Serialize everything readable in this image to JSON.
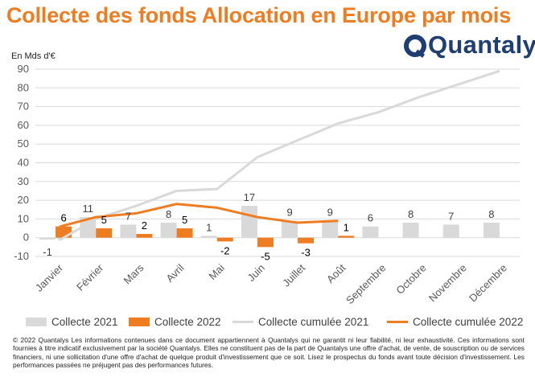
{
  "title": "Collecte des fonds Allocation en Europe par mois",
  "brand": {
    "name": "Quantalys",
    "logo_initial": "Q"
  },
  "colors": {
    "title": "#ee7d22",
    "brand": "#1f3f73",
    "bar2021": "#d9d9d9",
    "bar2022": "#ee7d22",
    "line2021": "#d9d9d9",
    "line2022": "#ee7d22",
    "grid": "#d9d9d9",
    "axis_text": "#595959"
  },
  "unit_label": "En Mds d'€",
  "chart_data": {
    "type": "bar",
    "categories": [
      "Janvier",
      "Février",
      "Mars",
      "Avril",
      "Mai",
      "Juin",
      "Juillet",
      "Août",
      "Septembre",
      "Octobre",
      "Novembre",
      "Décembre"
    ],
    "ylim": [
      -10,
      90
    ],
    "yticks": [
      -10,
      0,
      10,
      20,
      30,
      40,
      50,
      60,
      70,
      80,
      90
    ],
    "grid": true,
    "legend_position": "bottom",
    "series": [
      {
        "name": "Collecte 2021",
        "kind": "bar",
        "color": "#d9d9d9",
        "values": [
          -1,
          11,
          7,
          8,
          1,
          17,
          9,
          9,
          6,
          8,
          7,
          8
        ],
        "labels": [
          "-1",
          "11",
          "7",
          "8",
          "1",
          "17",
          "9",
          "9",
          "6",
          "8",
          "7",
          "8"
        ]
      },
      {
        "name": "Collecte 2022",
        "kind": "bar",
        "color": "#ee7d22",
        "values": [
          6,
          5,
          2,
          5,
          -2,
          -5,
          -3,
          1,
          null,
          null,
          null,
          null
        ],
        "labels": [
          "6",
          "5",
          "2",
          "5",
          "-2",
          "-5",
          "-3",
          "1",
          "",
          "",
          "",
          ""
        ]
      },
      {
        "name": "Collecte cumulée 2021",
        "kind": "line",
        "color": "#d9d9d9",
        "start": 0,
        "values": [
          -1,
          10,
          17,
          25,
          26,
          43,
          52,
          61,
          67,
          75,
          82,
          89
        ]
      },
      {
        "name": "Collecte cumulée 2022",
        "kind": "line",
        "color": "#ee7d22",
        "start": 0,
        "values": [
          6,
          11,
          13,
          18,
          16,
          11,
          8,
          9,
          null,
          null,
          null,
          null
        ]
      }
    ]
  },
  "footer": "© 2022 Quantalys Les informations contenues dans ce document appartiennent à Quantalys qui ne garantit ni leur fiabilité, ni leur exhaustivité. Ces informations sont fournies à titre indicatif exclusivement par la société Quantalys. Elles ne constituent pas de la part de Quantalys une offre d'achat, de vente, de souscription ou de services financiers, ni une sollicitation d'une offre d'achat de quelque produit d'investissement que ce soit. Lisez le prospectus du fonds avant toute décision d'investissement. Les performances passées ne préjugent pas des performances futures."
}
